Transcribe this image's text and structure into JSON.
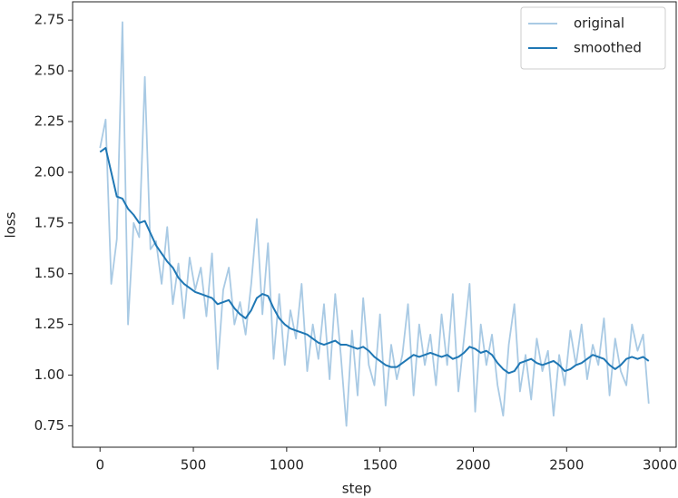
{
  "chart_data": {
    "type": "line",
    "xlabel": "step",
    "ylabel": "loss",
    "x": [
      0,
      30,
      60,
      90,
      120,
      150,
      180,
      210,
      240,
      270,
      300,
      330,
      360,
      390,
      420,
      450,
      480,
      510,
      540,
      570,
      600,
      630,
      660,
      690,
      720,
      750,
      780,
      810,
      840,
      870,
      900,
      930,
      960,
      990,
      1020,
      1050,
      1080,
      1110,
      1140,
      1170,
      1200,
      1230,
      1260,
      1290,
      1320,
      1350,
      1380,
      1410,
      1440,
      1470,
      1500,
      1530,
      1560,
      1590,
      1620,
      1650,
      1680,
      1710,
      1740,
      1770,
      1800,
      1830,
      1860,
      1890,
      1920,
      1950,
      1980,
      2010,
      2040,
      2070,
      2100,
      2130,
      2160,
      2190,
      2220,
      2250,
      2280,
      2310,
      2340,
      2370,
      2400,
      2430,
      2460,
      2490,
      2520,
      2550,
      2580,
      2610,
      2640,
      2670,
      2700,
      2730,
      2760,
      2790,
      2820,
      2850,
      2880,
      2910,
      2940
    ],
    "series": [
      {
        "name": "original",
        "color": "#a9cae4",
        "values": [
          2.12,
          2.26,
          1.45,
          1.67,
          2.74,
          1.25,
          1.75,
          1.68,
          2.47,
          1.62,
          1.66,
          1.45,
          1.73,
          1.35,
          1.55,
          1.28,
          1.58,
          1.42,
          1.53,
          1.29,
          1.6,
          1.03,
          1.42,
          1.53,
          1.25,
          1.36,
          1.2,
          1.45,
          1.77,
          1.3,
          1.65,
          1.08,
          1.4,
          1.05,
          1.32,
          1.18,
          1.45,
          1.02,
          1.25,
          1.08,
          1.35,
          0.98,
          1.4,
          1.1,
          0.75,
          1.22,
          0.9,
          1.38,
          1.05,
          0.95,
          1.3,
          0.85,
          1.15,
          0.98,
          1.1,
          1.35,
          0.9,
          1.25,
          1.05,
          1.2,
          0.95,
          1.3,
          1.05,
          1.4,
          0.92,
          1.18,
          1.45,
          0.82,
          1.25,
          1.05,
          1.2,
          0.95,
          0.8,
          1.15,
          1.35,
          0.92,
          1.1,
          0.88,
          1.18,
          1.02,
          1.12,
          0.8,
          1.1,
          0.95,
          1.22,
          1.05,
          1.25,
          0.98,
          1.15,
          1.05,
          1.28,
          0.9,
          1.18,
          1.02,
          0.95,
          1.25,
          1.12,
          1.2,
          0.86
        ]
      },
      {
        "name": "smoothed",
        "color": "#1f77b4",
        "values": [
          2.1,
          2.12,
          2.0,
          1.88,
          1.87,
          1.82,
          1.79,
          1.75,
          1.76,
          1.7,
          1.64,
          1.6,
          1.56,
          1.53,
          1.48,
          1.45,
          1.43,
          1.41,
          1.4,
          1.39,
          1.38,
          1.35,
          1.36,
          1.37,
          1.33,
          1.3,
          1.28,
          1.32,
          1.38,
          1.4,
          1.39,
          1.33,
          1.28,
          1.25,
          1.23,
          1.22,
          1.21,
          1.2,
          1.18,
          1.16,
          1.15,
          1.16,
          1.17,
          1.15,
          1.15,
          1.14,
          1.13,
          1.14,
          1.12,
          1.09,
          1.07,
          1.05,
          1.04,
          1.04,
          1.06,
          1.08,
          1.1,
          1.09,
          1.1,
          1.11,
          1.1,
          1.09,
          1.1,
          1.08,
          1.09,
          1.11,
          1.14,
          1.13,
          1.11,
          1.12,
          1.1,
          1.06,
          1.03,
          1.01,
          1.02,
          1.06,
          1.07,
          1.08,
          1.06,
          1.05,
          1.06,
          1.07,
          1.05,
          1.02,
          1.03,
          1.05,
          1.06,
          1.08,
          1.1,
          1.09,
          1.08,
          1.05,
          1.03,
          1.05,
          1.08,
          1.09,
          1.08,
          1.09,
          1.07
        ]
      }
    ],
    "xlim": [
      -147,
      3087
    ],
    "ylim": [
      0.645,
      2.84
    ],
    "xticks": [
      0,
      500,
      1000,
      1500,
      2000,
      2500,
      3000
    ],
    "yticks": [
      0.75,
      {
        "value": 1.0,
        "label": "1.00"
      },
      1.25,
      {
        "value": 1.5,
        "label": "1.50"
      },
      1.75,
      {
        "value": 2.0,
        "label": "2.00"
      },
      2.25,
      {
        "value": 2.5,
        "label": "2.50"
      },
      2.75
    ],
    "grid": false,
    "legend": "upper right"
  }
}
